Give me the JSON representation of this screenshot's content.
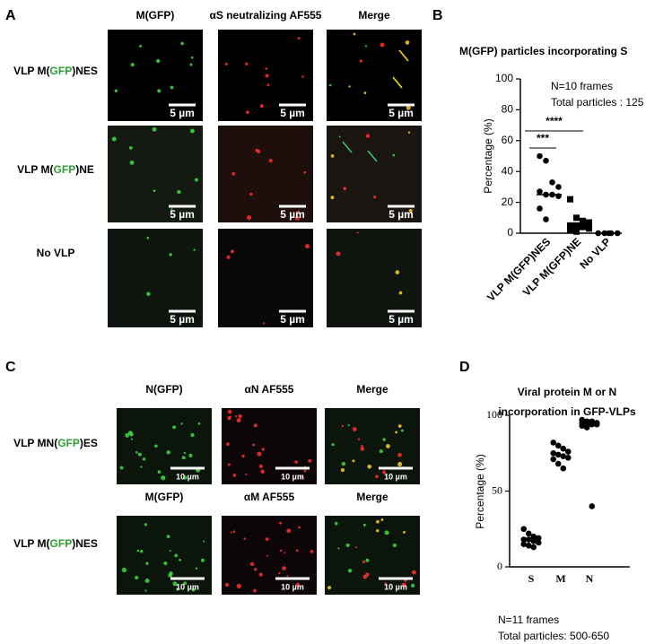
{
  "panel_labels": [
    "A",
    "B",
    "C",
    "D"
  ],
  "panel_a": {
    "columns": [
      "M(GFP)",
      "αS neutralizing AF555",
      "Merge"
    ],
    "rows": [
      [
        "VLP M(",
        "GFP",
        ")NES"
      ],
      [
        "VLP M(",
        "GFP",
        ")NE"
      ],
      [
        "No VLP"
      ]
    ],
    "scale_bar": "5 µm"
  },
  "panel_c": {
    "rows": [
      {
        "label": [
          "VLP MN(",
          "GFP",
          ")ES"
        ],
        "columns": [
          "N(GFP)",
          "αN AF555",
          "Merge"
        ]
      },
      {
        "label": [
          "VLP M(",
          "GFP",
          ")NES"
        ],
        "columns": [
          "M(GFP)",
          "αM AF555",
          "Merge"
        ]
      }
    ],
    "scale_bar": "10 µm"
  },
  "chart_data": [
    {
      "type": "dot",
      "title": "M(GFP) particles incorporating S",
      "ylabel": "Percentage (%)",
      "categories": [
        "VLP M(GFP)NES",
        "VLP M(GFP)NE",
        "No VLP"
      ],
      "values": [
        [
          50,
          47,
          33,
          30,
          27,
          25,
          25,
          24,
          16,
          9
        ],
        [
          22,
          10,
          8,
          7,
          5,
          5,
          4,
          3,
          2,
          1
        ],
        [
          0,
          0,
          0,
          0,
          0
        ]
      ],
      "medians": [
        25,
        5,
        0
      ],
      "markers": [
        "circle",
        "square",
        "circle"
      ],
      "color": "#000000",
      "ylim": [
        0,
        100
      ],
      "yticks": [
        0,
        20,
        40,
        60,
        80,
        100
      ],
      "grid": false,
      "annotations": [
        "N=10 frames",
        "Total particles : 125"
      ],
      "significance": [
        "***",
        "****"
      ]
    },
    {
      "type": "dot",
      "title": [
        "Viral protein M or N",
        "incorporation in GFP-VLPs"
      ],
      "ylabel": "Percentage (%)",
      "categories": [
        "S",
        "M",
        "N"
      ],
      "values": [
        [
          25,
          22,
          20,
          19,
          18,
          18,
          17,
          16,
          15,
          14,
          13
        ],
        [
          82,
          80,
          78,
          76,
          75,
          74,
          73,
          72,
          71,
          68,
          65
        ],
        [
          97,
          96,
          96,
          95,
          95,
          95,
          94,
          94,
          93,
          92,
          40
        ]
      ],
      "markers": [
        "circle",
        "circle",
        "circle"
      ],
      "color": "#000000",
      "ylim": [
        0,
        100
      ],
      "yticks": [
        0,
        50,
        100
      ],
      "grid": false,
      "annotations": [
        "N=11 frames",
        "Total particles: 500-650"
      ]
    }
  ]
}
